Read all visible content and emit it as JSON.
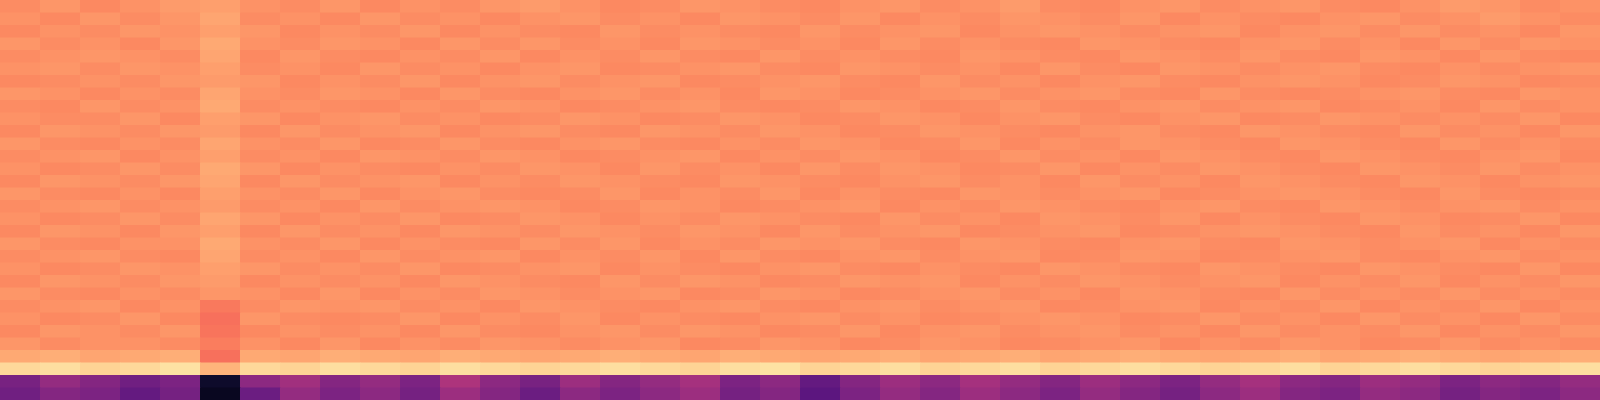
{
  "chart_data": {
    "type": "heatmap",
    "color": "magma",
    "zlim": [
      0,
      100
    ],
    "tick_labels": false,
    "z": [
      [
        76,
        78,
        75,
        77,
        79,
        80,
        77,
        76,
        78,
        75,
        77,
        76,
        78,
        79,
        77,
        75,
        76,
        78,
        77,
        76,
        75,
        77,
        78,
        76,
        77,
        79,
        76,
        75,
        77,
        78,
        76,
        77,
        78,
        76,
        75,
        77,
        79,
        78,
        76,
        77
      ],
      [
        77,
        75,
        78,
        76,
        78,
        81,
        76,
        77,
        75,
        78,
        76,
        77,
        75,
        77,
        78,
        76,
        77,
        75,
        78,
        77,
        76,
        78,
        75,
        77,
        76,
        78,
        77,
        76,
        78,
        75,
        77,
        76,
        75,
        77,
        78,
        76,
        77,
        79,
        77,
        76
      ],
      [
        75,
        77,
        76,
        78,
        77,
        80,
        78,
        75,
        77,
        76,
        78,
        75,
        77,
        76,
        75,
        78,
        76,
        77,
        76,
        75,
        78,
        76,
        77,
        78,
        75,
        77,
        78,
        77,
        76,
        77,
        78,
        75,
        77,
        78,
        76,
        78,
        76,
        77,
        75,
        78
      ],
      [
        78,
        76,
        77,
        75,
        78,
        82,
        77,
        76,
        78,
        77,
        75,
        78,
        76,
        78,
        76,
        77,
        75,
        78,
        77,
        76,
        77,
        75,
        78,
        76,
        77,
        76,
        75,
        78,
        77,
        76,
        75,
        77,
        78,
        76,
        77,
        75,
        78,
        76,
        78,
        77
      ],
      [
        76,
        77,
        78,
        77,
        76,
        81,
        75,
        78,
        76,
        75,
        77,
        76,
        78,
        75,
        77,
        76,
        78,
        76,
        75,
        78,
        76,
        77,
        76,
        75,
        78,
        77,
        76,
        75,
        78,
        77,
        76,
        78,
        76,
        75,
        78,
        77,
        75,
        78,
        76,
        75
      ],
      [
        77,
        78,
        76,
        78,
        77,
        80,
        76,
        77,
        75,
        78,
        76,
        77,
        75,
        77,
        78,
        75,
        76,
        77,
        78,
        76,
        75,
        78,
        77,
        76,
        77,
        75,
        78,
        76,
        75,
        78,
        77,
        76,
        77,
        78,
        76,
        75,
        77,
        76,
        77,
        78
      ],
      [
        75,
        76,
        77,
        76,
        78,
        79,
        78,
        75,
        77,
        76,
        78,
        75,
        77,
        78,
        76,
        77,
        78,
        75,
        76,
        77,
        78,
        76,
        75,
        78,
        76,
        77,
        75,
        77,
        78,
        76,
        75,
        77,
        78,
        77,
        75,
        76,
        78,
        77,
        75,
        76
      ],
      [
        78,
        77,
        75,
        77,
        76,
        81,
        77,
        76,
        78,
        77,
        75,
        78,
        76,
        75,
        77,
        78,
        76,
        77,
        75,
        78,
        77,
        75,
        76,
        77,
        78,
        76,
        77,
        78,
        76,
        75,
        78,
        76,
        75,
        76,
        77,
        78,
        76,
        75,
        78,
        77
      ],
      [
        76,
        75,
        78,
        76,
        77,
        82,
        76,
        77,
        76,
        75,
        77,
        76,
        78,
        77,
        75,
        76,
        77,
        78,
        76,
        75,
        76,
        78,
        77,
        75,
        76,
        78,
        76,
        75,
        77,
        78,
        76,
        77,
        78,
        75,
        76,
        77,
        75,
        78,
        76,
        77
      ],
      [
        77,
        76,
        76,
        78,
        75,
        80,
        78,
        75,
        77,
        78,
        76,
        77,
        75,
        76,
        78,
        77,
        75,
        76,
        78,
        77,
        75,
        76,
        78,
        77,
        75,
        77,
        78,
        76,
        75,
        77,
        78,
        75,
        76,
        78,
        77,
        76,
        77,
        76,
        78,
        75
      ],
      [
        75,
        78,
        77,
        76,
        78,
        79,
        75,
        78,
        76,
        77,
        78,
        75,
        77,
        78,
        76,
        75,
        78,
        77,
        76,
        78,
        77,
        75,
        76,
        78,
        77,
        76,
        75,
        77,
        78,
        76,
        75,
        78,
        77,
        76,
        75,
        78,
        76,
        77,
        75,
        78
      ],
      [
        78,
        76,
        75,
        77,
        76,
        81,
        77,
        76,
        78,
        75,
        76,
        78,
        76,
        75,
        77,
        78,
        76,
        75,
        77,
        76,
        78,
        77,
        75,
        76,
        78,
        75,
        77,
        76,
        78,
        77,
        76,
        75,
        78,
        77,
        76,
        75,
        78,
        76,
        77,
        76
      ],
      [
        76,
        77,
        78,
        75,
        77,
        80,
        76,
        77,
        75,
        78,
        77,
        76,
        78,
        77,
        75,
        76,
        77,
        78,
        75,
        77,
        76,
        78,
        77,
        75,
        76,
        78,
        76,
        77,
        75,
        78,
        77,
        76,
        75,
        78,
        77,
        76,
        75,
        77,
        78,
        75
      ],
      [
        77,
        75,
        76,
        78,
        76,
        82,
        78,
        75,
        77,
        76,
        75,
        77,
        76,
        78,
        77,
        75,
        78,
        76,
        77,
        75,
        78,
        76,
        78,
        77,
        75,
        76,
        78,
        75,
        77,
        76,
        78,
        77,
        76,
        75,
        78,
        77,
        76,
        78,
        76,
        77
      ],
      [
        75,
        78,
        77,
        76,
        78,
        81,
        75,
        78,
        76,
        77,
        78,
        75,
        77,
        76,
        78,
        77,
        76,
        75,
        78,
        77,
        76,
        75,
        77,
        78,
        76,
        77,
        75,
        78,
        76,
        77,
        75,
        78,
        77,
        76,
        75,
        78,
        77,
        75,
        77,
        78
      ],
      [
        78,
        76,
        75,
        77,
        75,
        80,
        77,
        76,
        78,
        75,
        77,
        78,
        76,
        75,
        76,
        78,
        75,
        77,
        76,
        78,
        75,
        77,
        76,
        75,
        78,
        77,
        76,
        77,
        78,
        75,
        76,
        77,
        78,
        77,
        76,
        75,
        78,
        76,
        75,
        76
      ],
      [
        76,
        77,
        78,
        76,
        77,
        79,
        76,
        77,
        75,
        78,
        76,
        77,
        78,
        77,
        75,
        76,
        78,
        77,
        75,
        76,
        77,
        78,
        75,
        77,
        76,
        78,
        77,
        76,
        75,
        77,
        78,
        76,
        75,
        78,
        77,
        76,
        77,
        78,
        76,
        77
      ],
      [
        77,
        75,
        76,
        78,
        76,
        81,
        78,
        75,
        77,
        76,
        78,
        75,
        76,
        78,
        77,
        75,
        77,
        76,
        78,
        77,
        76,
        75,
        78,
        76,
        77,
        75,
        78,
        77,
        76,
        78,
        75,
        77,
        76,
        75,
        78,
        77,
        75,
        76,
        78,
        75
      ],
      [
        75,
        78,
        77,
        75,
        78,
        80,
        75,
        78,
        76,
        77,
        75,
        78,
        77,
        76,
        78,
        77,
        76,
        78,
        77,
        75,
        78,
        76,
        77,
        78,
        75,
        76,
        77,
        78,
        75,
        76,
        77,
        78,
        77,
        76,
        75,
        78,
        76,
        77,
        75,
        78
      ],
      [
        78,
        76,
        75,
        77,
        77,
        82,
        77,
        76,
        78,
        75,
        77,
        76,
        75,
        78,
        76,
        78,
        75,
        77,
        76,
        78,
        77,
        78,
        76,
        75,
        78,
        77,
        76,
        75,
        77,
        78,
        76,
        75,
        78,
        77,
        76,
        77,
        78,
        75,
        77,
        76
      ],
      [
        76,
        77,
        78,
        76,
        75,
        81,
        76,
        77,
        75,
        78,
        76,
        77,
        78,
        75,
        77,
        76,
        78,
        75,
        78,
        76,
        75,
        77,
        78,
        76,
        77,
        78,
        75,
        76,
        78,
        77,
        75,
        76,
        77,
        78,
        76,
        75,
        77,
        78,
        76,
        77
      ],
      [
        77,
        75,
        76,
        78,
        77,
        80,
        78,
        76,
        77,
        76,
        78,
        75,
        76,
        77,
        78,
        75,
        77,
        76,
        75,
        77,
        78,
        76,
        75,
        77,
        76,
        75,
        78,
        77,
        76,
        75,
        78,
        77,
        76,
        75,
        78,
        77,
        76,
        75,
        78,
        75
      ],
      [
        75,
        78,
        77,
        76,
        78,
        79,
        75,
        77,
        76,
        77,
        75,
        78,
        77,
        76,
        75,
        78,
        76,
        78,
        77,
        75,
        76,
        78,
        77,
        78,
        75,
        77,
        76,
        78,
        77,
        76,
        77,
        78,
        75,
        77,
        76,
        78,
        75,
        77,
        76,
        78
      ],
      [
        78,
        76,
        75,
        77,
        76,
        78,
        77,
        75,
        78,
        75,
        77,
        76,
        78,
        77,
        76,
        77,
        78,
        75,
        76,
        78,
        77,
        75,
        76,
        77,
        78,
        76,
        77,
        75,
        78,
        77,
        76,
        75,
        78,
        76,
        77,
        76,
        78,
        76,
        77,
        76
      ],
      [
        76,
        77,
        78,
        75,
        77,
        72,
        76,
        78,
        77,
        78,
        76,
        77,
        75,
        78,
        77,
        76,
        75,
        77,
        78,
        76,
        75,
        77,
        78,
        76,
        77,
        78,
        75,
        76,
        77,
        78,
        75,
        77,
        76,
        78,
        75,
        77,
        76,
        78,
        75,
        77
      ],
      [
        77,
        75,
        76,
        78,
        75,
        70,
        78,
        76,
        75,
        76,
        78,
        75,
        77,
        76,
        78,
        75,
        77,
        76,
        75,
        77,
        78,
        76,
        77,
        75,
        76,
        77,
        78,
        77,
        75,
        76,
        78,
        76,
        77,
        75,
        78,
        76,
        77,
        75,
        78,
        76
      ],
      [
        75,
        78,
        77,
        76,
        78,
        71,
        75,
        77,
        76,
        77,
        75,
        78,
        76,
        75,
        77,
        78,
        76,
        78,
        77,
        75,
        76,
        78,
        75,
        77,
        78,
        76,
        77,
        78,
        76,
        77,
        75,
        78,
        76,
        77,
        76,
        78,
        75,
        77,
        76,
        78
      ],
      [
        78,
        76,
        77,
        77,
        76,
        73,
        77,
        75,
        78,
        75,
        77,
        76,
        78,
        77,
        76,
        77,
        78,
        75,
        76,
        78,
        77,
        75,
        76,
        78,
        77,
        75,
        76,
        77,
        78,
        75,
        77,
        76,
        78,
        77,
        75,
        76,
        78,
        76,
        77,
        76
      ],
      [
        82,
        83,
        81,
        82,
        83,
        70,
        82,
        81,
        83,
        82,
        81,
        83,
        82,
        81,
        82,
        83,
        82,
        81,
        83,
        82,
        81,
        82,
        83,
        81,
        82,
        83,
        81,
        82,
        83,
        82,
        81,
        82,
        83,
        81,
        82,
        83,
        82,
        81,
        82,
        83
      ],
      [
        92,
        93,
        91,
        92,
        94,
        84,
        92,
        91,
        93,
        92,
        91,
        93,
        92,
        91,
        92,
        93,
        92,
        91,
        93,
        94,
        91,
        92,
        93,
        91,
        92,
        93,
        91,
        92,
        93,
        92,
        91,
        92,
        93,
        91,
        92,
        93,
        92,
        91,
        92,
        93
      ],
      [
        35,
        42,
        38,
        33,
        36,
        8,
        40,
        45,
        38,
        42,
        36,
        48,
        40,
        35,
        44,
        38,
        42,
        46,
        36,
        40,
        30,
        38,
        44,
        40,
        46,
        42,
        38,
        44,
        40,
        36,
        42,
        46,
        40,
        38,
        44,
        42,
        36,
        40,
        38,
        42
      ],
      [
        33,
        38,
        36,
        30,
        34,
        6,
        32,
        42,
        36,
        40,
        34,
        44,
        38,
        32,
        40,
        36,
        40,
        44,
        34,
        38,
        28,
        36,
        42,
        38,
        44,
        40,
        36,
        42,
        38,
        34,
        40,
        44,
        38,
        36,
        42,
        40,
        34,
        38,
        36,
        40
      ]
    ]
  }
}
